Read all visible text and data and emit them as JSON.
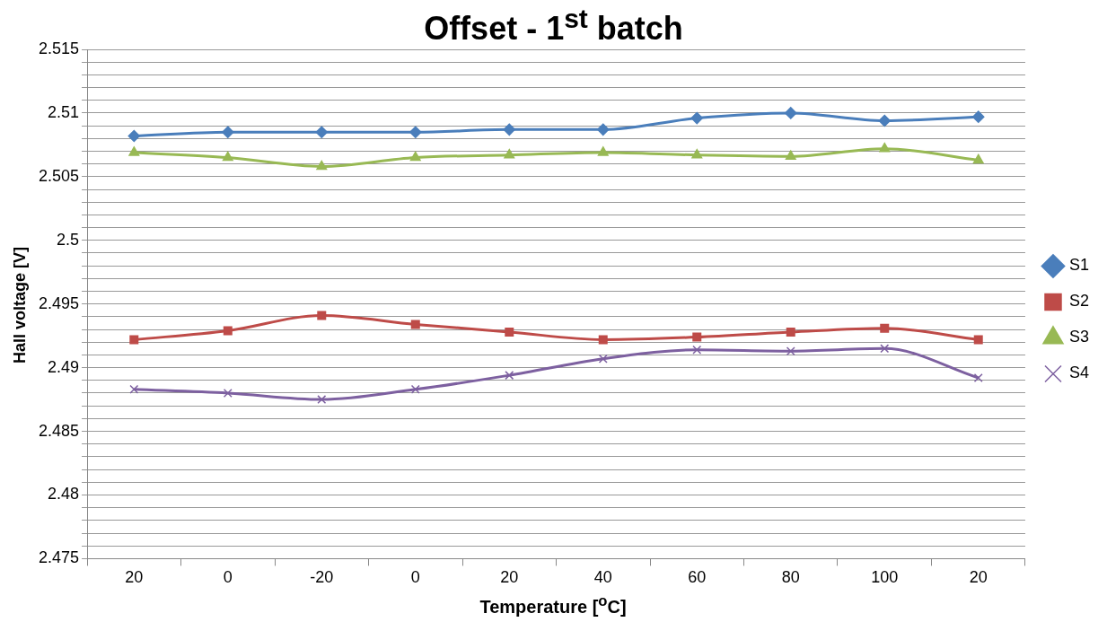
{
  "chart_data": {
    "type": "line",
    "title": "Offset - 1$^{st}$ batch",
    "xlabel": "Temperature [$^{o}$C]",
    "ylabel": "Hall voltage [V]",
    "categories": [
      "20",
      "0",
      "-20",
      "0",
      "20",
      "40",
      "60",
      "80",
      "100",
      "20"
    ],
    "series": [
      {
        "name": "S1",
        "color": "#4a7ebb",
        "marker": "diamond",
        "values": [
          2.5082,
          2.5085,
          2.5085,
          2.5085,
          2.5087,
          2.5087,
          2.5096,
          2.51,
          2.5094,
          2.5097
        ]
      },
      {
        "name": "S2",
        "color": "#be4b48",
        "marker": "square",
        "values": [
          2.4922,
          2.4929,
          2.4941,
          2.4934,
          2.4928,
          2.4922,
          2.4924,
          2.4928,
          2.4931,
          2.4922
        ]
      },
      {
        "name": "S3",
        "color": "#98b954",
        "marker": "triangle",
        "values": [
          2.5069,
          2.5065,
          2.5058,
          2.5065,
          2.5067,
          2.5069,
          2.5067,
          2.5066,
          2.5072,
          2.5063
        ]
      },
      {
        "name": "S4",
        "color": "#7d60a0",
        "marker": "cross",
        "values": [
          2.4883,
          2.488,
          2.4875,
          2.4883,
          2.4894,
          2.4907,
          2.4914,
          2.4913,
          2.4915,
          2.4892
        ]
      }
    ],
    "ylim": [
      2.475,
      2.515
    ],
    "yticks": [
      2.475,
      {
        "value": 2.476,
        "label": null
      },
      {
        "value": 2.477,
        "label": null
      },
      {
        "value": 2.478,
        "label": null
      },
      {
        "value": 2.479,
        "label": null
      },
      2.48,
      {
        "value": 2.481,
        "label": null
      },
      {
        "value": 2.482,
        "label": null
      },
      {
        "value": 2.483,
        "label": null
      },
      {
        "value": 2.484,
        "label": null
      },
      2.485,
      {
        "value": 2.486,
        "label": null
      },
      {
        "value": 2.487,
        "label": null
      },
      {
        "value": 2.488,
        "label": null
      },
      {
        "value": 2.489,
        "label": null
      },
      2.49,
      {
        "value": 2.491,
        "label": null
      },
      {
        "value": 2.492,
        "label": null
      },
      {
        "value": 2.493,
        "label": null
      },
      {
        "value": 2.494,
        "label": null
      },
      2.495,
      {
        "value": 2.496,
        "label": null
      },
      {
        "value": 2.497,
        "label": null
      },
      {
        "value": 2.498,
        "label": null
      },
      {
        "value": 2.499,
        "label": null
      },
      2.5,
      {
        "value": 2.501,
        "label": null
      },
      {
        "value": 2.502,
        "label": null
      },
      {
        "value": 2.503,
        "label": null
      },
      {
        "value": 2.504,
        "label": null
      },
      2.505,
      {
        "value": 2.506,
        "label": null
      },
      {
        "value": 2.507,
        "label": null
      },
      {
        "value": 2.508,
        "label": null
      },
      {
        "value": 2.509,
        "label": null
      },
      2.51,
      {
        "value": 2.511,
        "label": null
      },
      {
        "value": 2.512,
        "label": null
      },
      {
        "value": 2.513,
        "label": null
      },
      {
        "value": 2.514,
        "label": null
      },
      2.515
    ],
    "grid": "y",
    "legend": "right",
    "line_style": "solid"
  }
}
